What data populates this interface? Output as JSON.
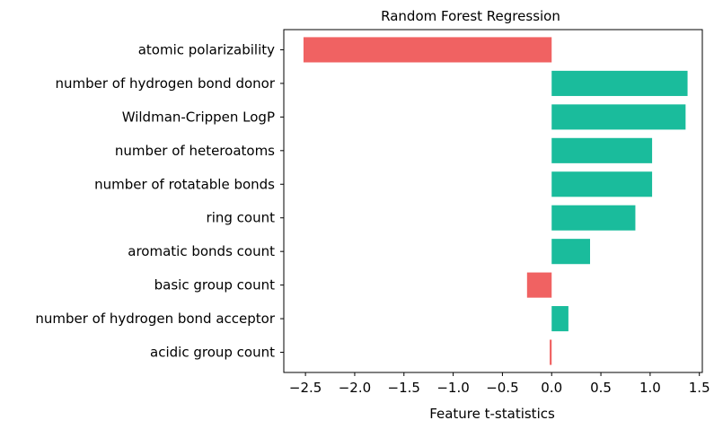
{
  "chart_data": {
    "type": "bar",
    "orientation": "horizontal",
    "title": "Random Forest Regression",
    "xlabel": "Feature t-statistics",
    "ylabel": "",
    "xlim": [
      -2.72,
      1.53
    ],
    "xticks": [
      -2.5,
      -2.0,
      -1.5,
      -1.0,
      -0.5,
      0.0,
      0.5,
      1.0,
      1.5
    ],
    "xtick_labels": [
      "−2.5",
      "−2.0",
      "−1.5",
      "−1.0",
      "−0.5",
      "0.0",
      "0.5",
      "1.0",
      "1.5"
    ],
    "grid": false,
    "categories": [
      "atomic polarizability",
      "number of hydrogen bond donor",
      "Wildman-Crippen LogP",
      "number of heteroatoms",
      "number of rotatable bonds",
      "ring count",
      "aromatic bonds count",
      "basic group count",
      "number of hydrogen bond acceptor",
      "acidic group count"
    ],
    "values": [
      -2.52,
      1.38,
      1.36,
      1.02,
      1.02,
      0.85,
      0.39,
      -0.25,
      0.17,
      -0.02
    ],
    "highlighted_labels": [
      "number of hydrogen bond donor",
      "Wildman-Crippen LogP",
      "basic group count"
    ],
    "colors": {
      "positive": "#1abc9c",
      "negative": "#f06262",
      "label_default": "#000000",
      "label_highlight": "#800080"
    }
  }
}
